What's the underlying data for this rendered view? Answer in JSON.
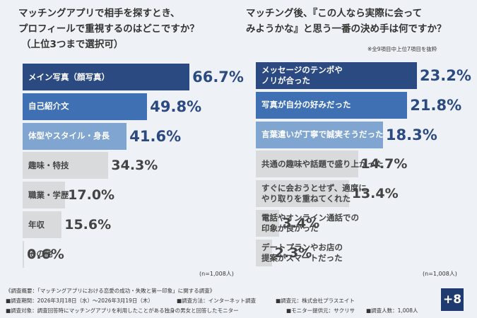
{
  "chart_data": [
    {
      "type": "bar",
      "orientation": "horizontal",
      "title": "マッチングアプリで相手を探すとき、\nプロフィールで重視するのはどこですか？",
      "subtitle": "（上位3つまで選択可）",
      "categories": [
        "メイン写真（顔写真）",
        "自己紹介文",
        "体型やスタイル・身長",
        "趣味・特技",
        "職業・学歴",
        "年収",
        "その他"
      ],
      "values": [
        66.7,
        49.8,
        41.6,
        34.3,
        17.0,
        15.6,
        0.6
      ],
      "value_labels": [
        "66.7%",
        "49.8%",
        "41.6%",
        "34.3%",
        "17.0%",
        "15.6%",
        "0.6%"
      ],
      "colors": [
        "#2c4a82",
        "#3f70b3",
        "#7fa5d0",
        "#d9dadc",
        "#d9dadc",
        "#d9dadc",
        "#d9dadc"
      ],
      "sample_note": "(n=1,008人)"
    },
    {
      "type": "bar",
      "orientation": "horizontal",
      "title": "マッチング後、『この人なら実際に会って\nみようかな』と思う一番の決め手は何ですか？",
      "subtitle": "※全9項目中上位7項目を抜粋",
      "categories": [
        "メッセージのテンポや\nノリが合った",
        "写真が自分の好みだった",
        "言葉遣いが丁寧で誠実そうだった",
        "共通の趣味や話題で盛り上がった",
        "すぐに会おうとせず、適度に\nやり取りを重ねてくれた",
        "電話やオンライン通話での\n印象が良かった",
        "デートプランやお店の\n提案がスマートだった"
      ],
      "values": [
        23.2,
        21.8,
        18.3,
        14.7,
        13.4,
        3.4,
        2.3
      ],
      "value_labels": [
        "23.2%",
        "21.8%",
        "18.3%",
        "14.7%",
        "13.4%",
        "3.4%",
        "2.3%"
      ],
      "colors": [
        "#2c4a82",
        "#3f70b3",
        "#7fa5d0",
        "#d9dadc",
        "#d9dadc",
        "#d9dadc",
        "#d9dadc"
      ],
      "sample_note": "(n=1,008人)"
    }
  ],
  "footer": {
    "heading": "《調査概要：「マッチングアプリにおける恋愛の成功・失敗と第一印象」に関する調査》",
    "items": [
      "■調査期間：2026年3月18日（水）〜2026年3月19日（木）",
      "■調査方法：インターネット調査",
      "■調査元：株式会社プラスエイト",
      "■調査対象：調査回答時にマッチングアプリを利用したことがある独身の男女と回答したモニター",
      "■モニター提供元：サクリサ",
      "■調査人数：1,008人"
    ],
    "logo": "+8"
  }
}
